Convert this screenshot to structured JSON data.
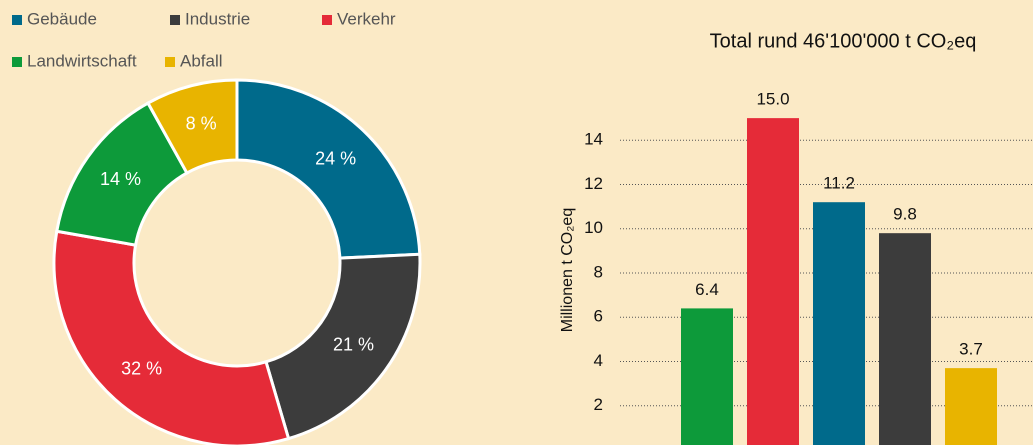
{
  "chart_data": [
    {
      "type": "pie",
      "categories": [
        "Gebäude",
        "Industrie",
        "Verkehr",
        "Landwirtschaft",
        "Abfall"
      ],
      "values": [
        24,
        21,
        32,
        14,
        8
      ],
      "value_labels": [
        "24 %",
        "21 %",
        "32 %",
        "14 %",
        "8 %"
      ],
      "colors": [
        "#006a8b",
        "#3c3c3c",
        "#e52b38",
        "#0d9a3a",
        "#e8b400"
      ],
      "donut": true
    },
    {
      "type": "bar",
      "title": "Total rund 46'100'000 t CO₂eq",
      "y_label": "Millionen t CO₂eq",
      "values": [
        6.4,
        15,
        11.2,
        9.8,
        3.7
      ],
      "value_labels": [
        "6.4",
        "15.0",
        "11.2",
        "9.8",
        "3.7"
      ],
      "colors": [
        "#0d9a3a",
        "#e52b38",
        "#006a8b",
        "#3c3c3c",
        "#e8b400"
      ],
      "ylim": [
        0,
        16
      ],
      "yticks": [
        2,
        4,
        6,
        8,
        10,
        12,
        14
      ],
      "grid": true
    }
  ]
}
